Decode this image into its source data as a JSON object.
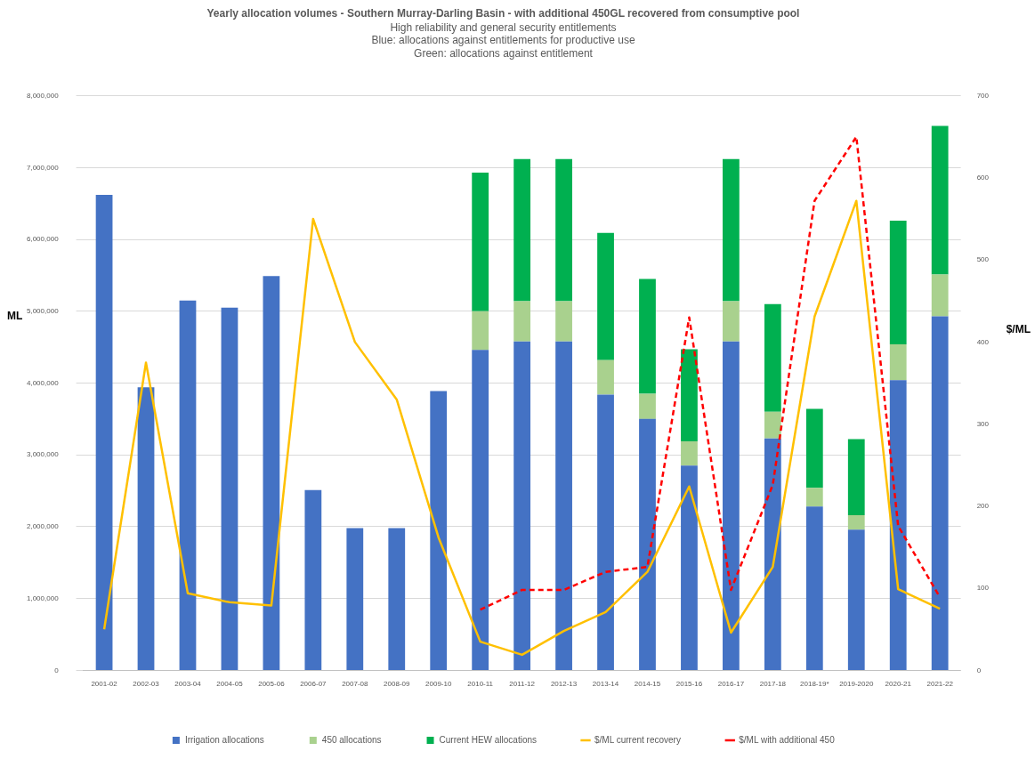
{
  "chart_data": {
    "type": "bar",
    "title": "Yearly allocation volumes - Southern Murray-Darling Basin - with additional 450GL recovered from consumptive pool",
    "subtitle": "High reliability and general security entitlements\nBlue: allocations against entitlements for productive use\nGreen: allocations against entitlement",
    "ylabel": "ML",
    "y2label": "$/ML",
    "categories": [
      "2001-02",
      "2002-03",
      "2003-04",
      "2004-05",
      "2005-06",
      "2006-07",
      "2007-08",
      "2008-09",
      "2009-10",
      "2010-11",
      "2011-12",
      "2012-13",
      "2013-14",
      "2014-15",
      "2015-16",
      "2016-17",
      "2017-18",
      "2018-19*",
      "2019-2020",
      "2020-21",
      "2021-22"
    ],
    "stacked": true,
    "series": [
      {
        "name": "Irrigation allocations",
        "color": "#4472c4",
        "values": [
          6620000,
          3940000,
          5150000,
          5050000,
          5490000,
          2510000,
          1980000,
          1980000,
          3890000,
          4460000,
          4580000,
          4580000,
          3840000,
          3500000,
          2850000,
          4580000,
          3230000,
          2280000,
          1960000,
          4040000,
          4930000
        ]
      },
      {
        "name": "450 allocations",
        "color": "#a9d18e",
        "values": [
          null,
          null,
          null,
          null,
          null,
          null,
          null,
          null,
          null,
          540000,
          560000,
          560000,
          480000,
          350000,
          340000,
          560000,
          370000,
          260000,
          200000,
          500000,
          580000
        ]
      },
      {
        "name": "Current HEW allocations",
        "color": "#00b050",
        "values": [
          null,
          null,
          null,
          null,
          null,
          null,
          null,
          null,
          null,
          1930000,
          1980000,
          1980000,
          1770000,
          1600000,
          1280000,
          1980000,
          1500000,
          1100000,
          1060000,
          1720000,
          2070000
        ]
      },
      {
        "name": "$/ML current recovery",
        "type": "line",
        "axis": "y2",
        "color": "#ffc000",
        "line_style": "solid",
        "values": [
          50,
          375,
          94,
          83,
          79,
          550,
          400,
          330,
          162,
          35,
          19,
          48,
          71,
          120,
          224,
          46,
          126,
          431,
          572,
          99,
          75
        ]
      },
      {
        "name": "$/ML with additional 450",
        "type": "line",
        "axis": "y2",
        "color": "#ff0000",
        "line_style": "dashed",
        "values": [
          null,
          null,
          null,
          null,
          null,
          null,
          null,
          null,
          null,
          74,
          98,
          98,
          120,
          126,
          430,
          98,
          226,
          572,
          650,
          176,
          89
        ]
      }
    ],
    "ylim": [
      0,
      8000000
    ],
    "yticks": [
      0,
      {
        "value": 1000000,
        "label": "1,000,000"
      },
      {
        "value": 2000000,
        "label": "2,000,000"
      },
      {
        "value": 3000000,
        "label": "3,000,000"
      },
      {
        "value": 4000000,
        "label": "4,000,000"
      },
      {
        "value": 5000000,
        "label": "5,000,000"
      },
      {
        "value": 6000000,
        "label": "6,000,000"
      },
      {
        "value": 7000000,
        "label": "7,000,000"
      },
      {
        "value": 8000000,
        "label": "8,000,000"
      }
    ],
    "y2lim": [
      0,
      700
    ],
    "y2ticks": [
      0,
      100,
      200,
      300,
      400,
      500,
      600,
      700
    ],
    "grid": "y",
    "legend": "bottom",
    "marker": "none"
  }
}
